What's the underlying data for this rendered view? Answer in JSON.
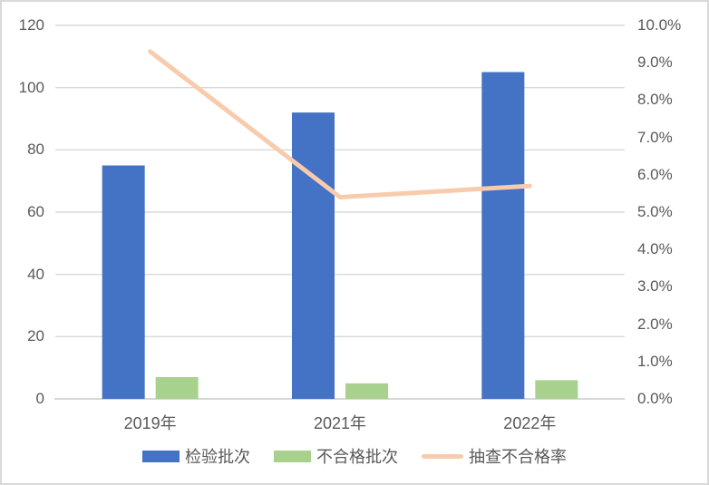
{
  "chart_data": {
    "type": "combo-bar-line",
    "title": "",
    "categories": [
      "2019年",
      "2021年",
      "2022年"
    ],
    "series": [
      {
        "name": "检验批次",
        "type": "bar",
        "axis": "left",
        "color": "#4472C4",
        "values": [
          75,
          92,
          105
        ]
      },
      {
        "name": "不合格批次",
        "type": "bar",
        "axis": "left",
        "color": "#A9D18E",
        "values": [
          7,
          5,
          6
        ]
      },
      {
        "name": "抽查不合格率",
        "type": "line",
        "axis": "right",
        "color": "#F8CBAD",
        "values": [
          9.3,
          5.4,
          5.7
        ],
        "unit": "%"
      }
    ],
    "left_axis": {
      "min": 0,
      "max": 120,
      "step": 20,
      "tick_labels": [
        "120",
        "100",
        "80",
        "60",
        "40",
        "20",
        "0"
      ]
    },
    "right_axis": {
      "min": 0,
      "max": 10,
      "step": 1,
      "unit": "%",
      "tick_labels": [
        "10.0%",
        "9.0%",
        "8.0%",
        "7.0%",
        "6.0%",
        "5.0%",
        "4.0%",
        "3.0%",
        "2.0%",
        "1.0%",
        "0.0%"
      ]
    },
    "legend": {
      "position": "bottom",
      "entries": [
        "检验批次",
        "不合格批次",
        "抽查不合格率"
      ]
    },
    "grid": "horizontal",
    "colors": {
      "grid": "#D9D9D9",
      "axis": "#D6D6D6",
      "text": "#595959",
      "background": "#FFFFFF",
      "border": "#D9D9D9"
    }
  }
}
